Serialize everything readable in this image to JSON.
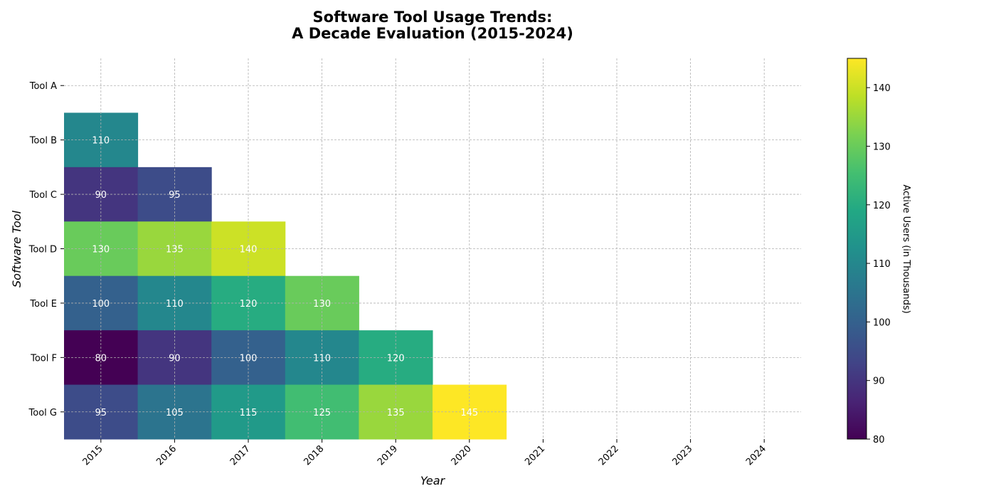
{
  "chart_data": {
    "type": "heatmap",
    "title_lines": [
      "Software Tool Usage Trends:",
      "A Decade Evaluation (2015-2024)"
    ],
    "xlabel": "Year",
    "ylabel": "Software Tool",
    "x_categories": [
      "2015",
      "2016",
      "2017",
      "2018",
      "2019",
      "2020",
      "2021",
      "2022",
      "2023",
      "2024"
    ],
    "y_categories": [
      "Tool A",
      "Tool B",
      "Tool C",
      "Tool D",
      "Tool E",
      "Tool F",
      "Tool G"
    ],
    "values": [
      [
        null,
        null,
        null,
        null,
        null,
        null,
        null,
        null,
        null,
        null
      ],
      [
        110,
        null,
        null,
        null,
        null,
        null,
        null,
        null,
        null,
        null
      ],
      [
        90,
        95,
        null,
        null,
        null,
        null,
        null,
        null,
        null,
        null
      ],
      [
        130,
        135,
        140,
        null,
        null,
        null,
        null,
        null,
        null,
        null
      ],
      [
        100,
        110,
        120,
        130,
        null,
        null,
        null,
        null,
        null,
        null
      ],
      [
        80,
        90,
        100,
        110,
        120,
        null,
        null,
        null,
        null,
        null
      ],
      [
        95,
        105,
        115,
        125,
        135,
        145,
        null,
        null,
        null,
        null
      ]
    ],
    "colorbar": {
      "label": "Active Users (in Thousands)",
      "min": 80,
      "max": 145,
      "ticks": [
        80,
        90,
        100,
        110,
        120,
        130,
        140
      ],
      "colormap": "viridis"
    },
    "grid": true,
    "annotation_color": "#ffffff"
  }
}
